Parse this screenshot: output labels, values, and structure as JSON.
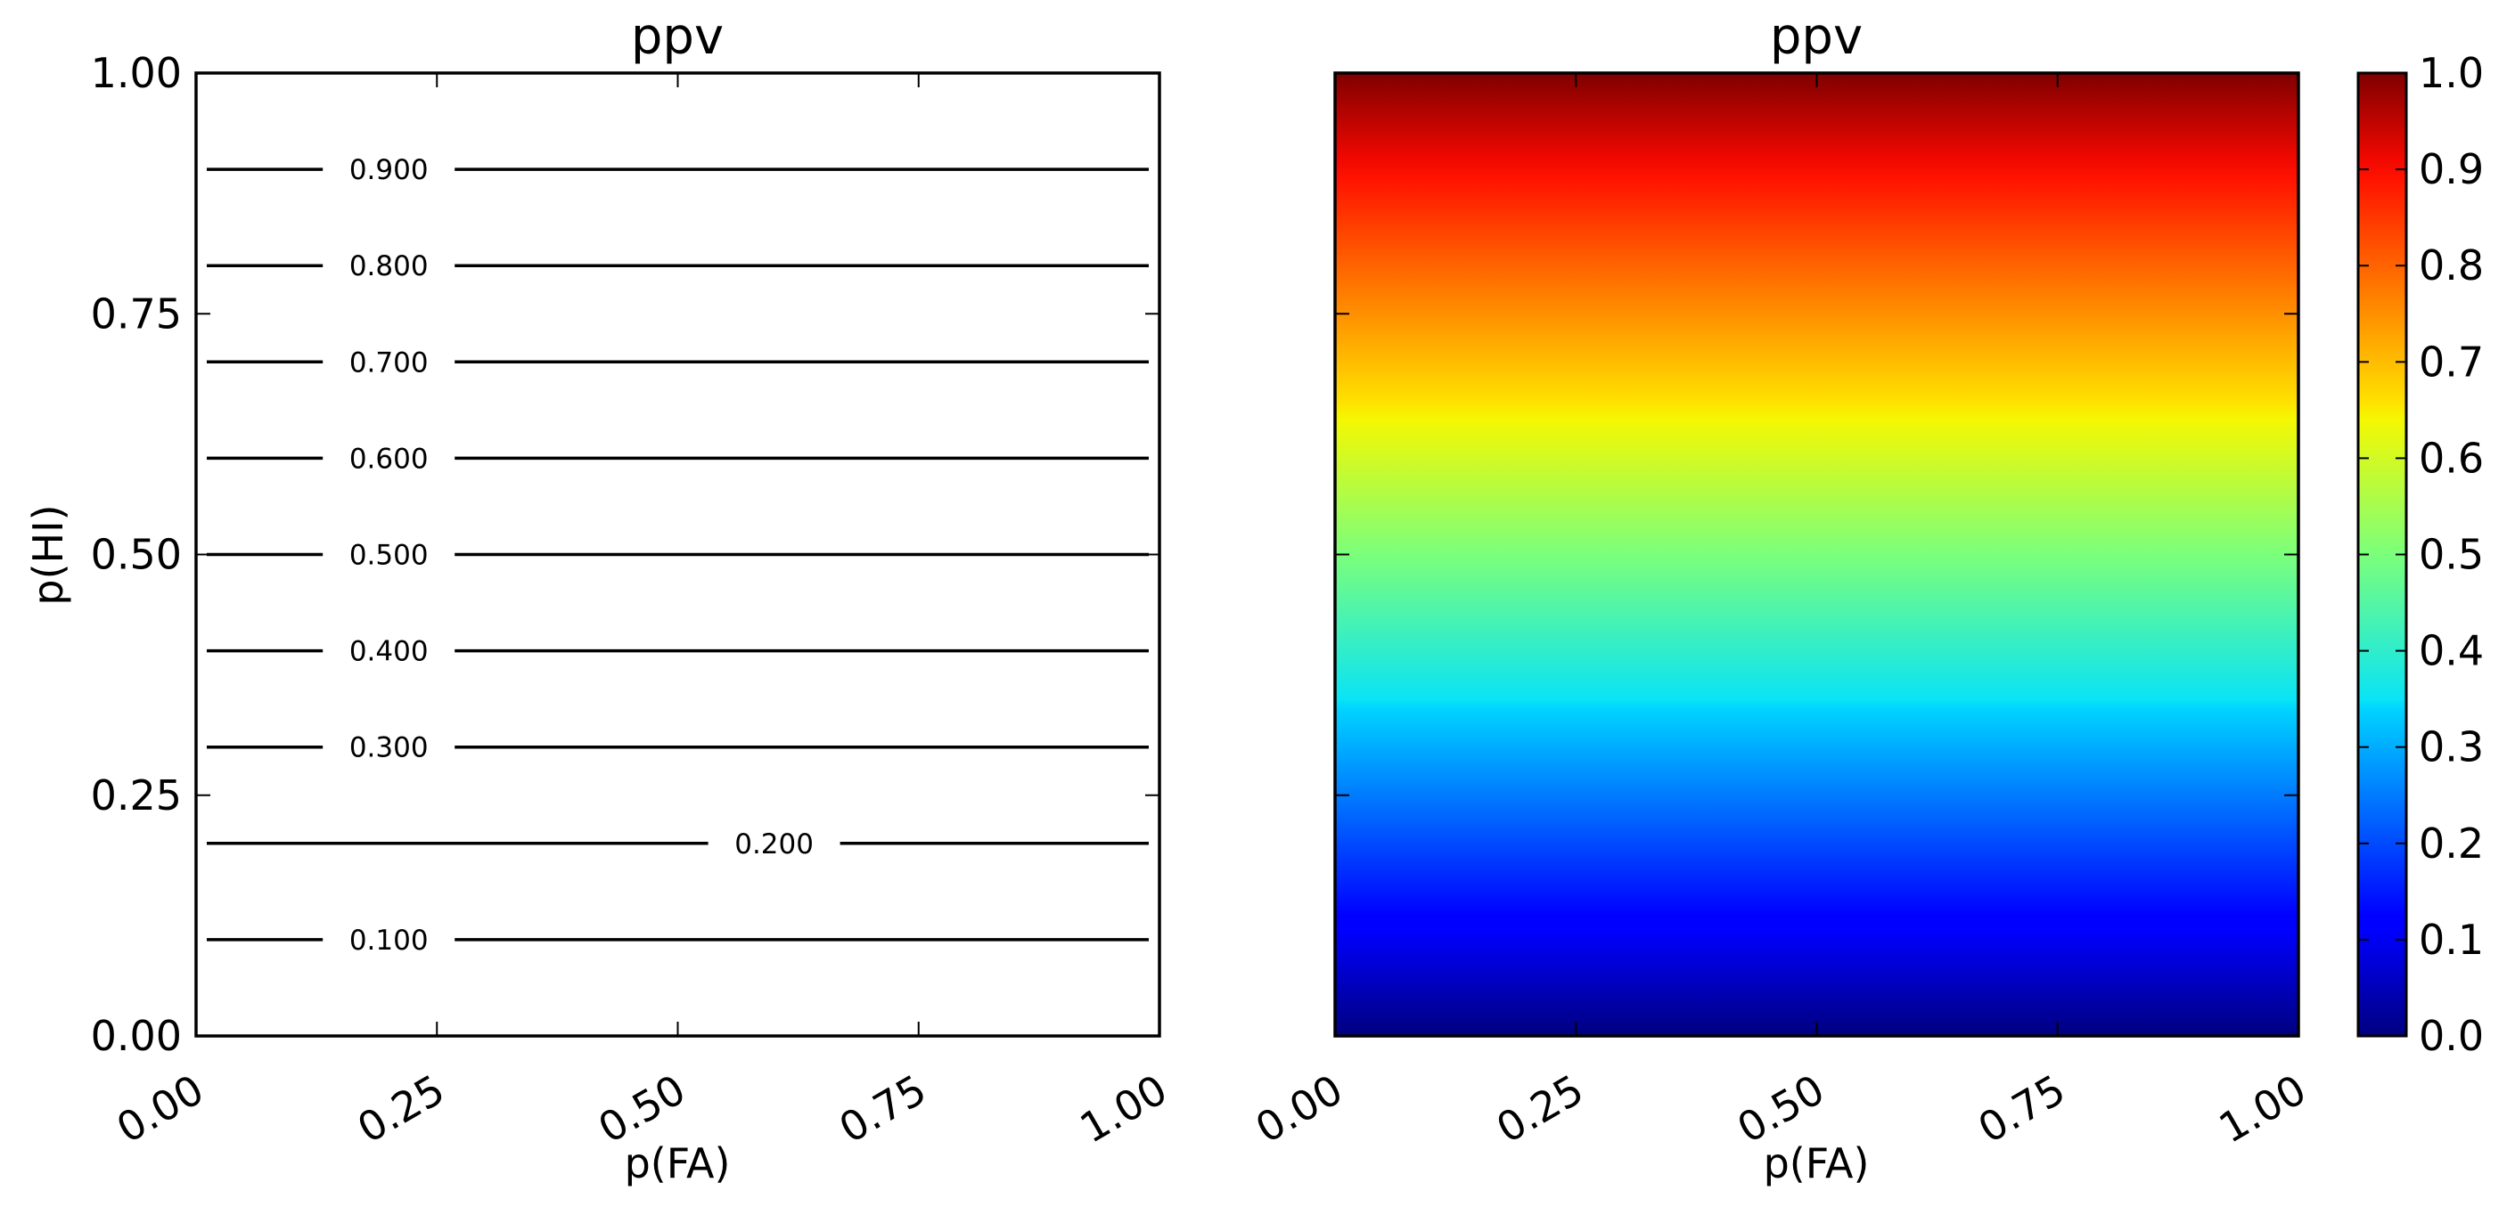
{
  "chart_data": [
    {
      "type": "contour",
      "title": "ppv",
      "xlabel": "p(FA)",
      "ylabel": "p(HI)",
      "xlim": [
        0,
        1
      ],
      "ylim": [
        0,
        1
      ],
      "xticks": [
        0.0,
        0.25,
        0.5,
        0.75,
        1.0
      ],
      "xtick_labels": [
        "0.00",
        "0.25",
        "0.50",
        "0.75",
        "1.00"
      ],
      "yticks": [
        0.0,
        0.25,
        0.5,
        0.75,
        1.0
      ],
      "ytick_labels": [
        "0.00",
        "0.25",
        "0.50",
        "0.75",
        "1.00"
      ],
      "grid": false,
      "contours": [
        {
          "level": 0.1,
          "label": "0.100",
          "label_x": 0.2
        },
        {
          "level": 0.2,
          "label": "0.200",
          "label_x": 0.6
        },
        {
          "level": 0.3,
          "label": "0.300",
          "label_x": 0.2
        },
        {
          "level": 0.4,
          "label": "0.400",
          "label_x": 0.2
        },
        {
          "level": 0.5,
          "label": "0.500",
          "label_x": 0.2
        },
        {
          "level": 0.6,
          "label": "0.600",
          "label_x": 0.2
        },
        {
          "level": 0.7,
          "label": "0.700",
          "label_x": 0.2
        },
        {
          "level": 0.8,
          "label": "0.800",
          "label_x": 0.2
        },
        {
          "level": 0.9,
          "label": "0.900",
          "label_x": 0.2
        }
      ]
    },
    {
      "type": "heatmap",
      "title": "ppv",
      "xlabel": "p(FA)",
      "ylabel": "",
      "xlim": [
        0,
        1
      ],
      "ylim": [
        0,
        1
      ],
      "xticks": [
        0.0,
        0.25,
        0.5,
        0.75,
        1.0
      ],
      "xtick_labels": [
        "0.00",
        "0.25",
        "0.50",
        "0.75",
        "1.00"
      ],
      "colormap": "jet",
      "value_function": "ppv increases linearly with p(HI), constant along p(FA)",
      "value_range": [
        0,
        1
      ],
      "colorbar": {
        "ticks": [
          0.0,
          0.1,
          0.2,
          0.3,
          0.4,
          0.5,
          0.6,
          0.7,
          0.8,
          0.9,
          1.0
        ],
        "tick_labels": [
          "0.0",
          "0.1",
          "0.2",
          "0.3",
          "0.4",
          "0.5",
          "0.6",
          "0.7",
          "0.8",
          "0.9",
          "1.0"
        ]
      },
      "grid": false
    }
  ]
}
